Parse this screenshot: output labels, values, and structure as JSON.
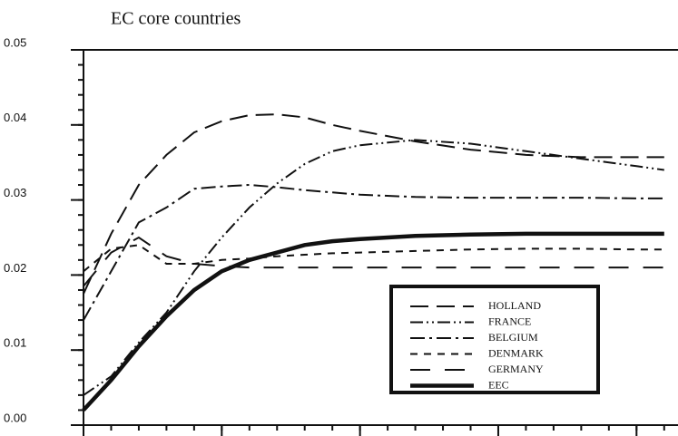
{
  "chart_data": {
    "type": "line",
    "title": "EC core countries",
    "x": [
      0,
      2,
      4,
      6,
      8,
      10,
      12,
      14,
      16,
      18,
      20,
      24,
      28,
      32,
      36,
      40,
      42
    ],
    "xlim": [
      0,
      43
    ],
    "xticks": [
      0,
      10,
      20,
      30,
      40
    ],
    "xminor_step": 2,
    "ylim": [
      0,
      0.05
    ],
    "yticks": [
      {
        "value": 0,
        "label": "0.00"
      },
      0.01,
      0.02,
      0.03,
      0.04,
      0.05
    ],
    "yminor_step": 0.002,
    "series": [
      {
        "name": "HOLLAND",
        "color": "#111",
        "dash": "20,9",
        "width": 2,
        "values": [
          0.0175,
          0.0255,
          0.032,
          0.036,
          0.039,
          0.0405,
          0.0413,
          0.0414,
          0.041,
          0.04,
          0.0392,
          0.0378,
          0.0367,
          0.036,
          0.0357,
          0.0357,
          0.0357
        ]
      },
      {
        "name": "FRANCE",
        "color": "#111",
        "dash": "14,4,2,4,2,4",
        "width": 2,
        "values": [
          0.004,
          0.0065,
          0.011,
          0.015,
          0.0205,
          0.025,
          0.029,
          0.0322,
          0.0348,
          0.0365,
          0.0373,
          0.038,
          0.0375,
          0.0365,
          0.0355,
          0.0345,
          0.034
        ]
      },
      {
        "name": "BELGIUM",
        "color": "#111",
        "dash": "16,5,3,5",
        "width": 2,
        "values": [
          0.014,
          0.0205,
          0.027,
          0.029,
          0.0315,
          0.0318,
          0.032,
          0.0317,
          0.0313,
          0.031,
          0.0307,
          0.0304,
          0.0303,
          0.0303,
          0.0303,
          0.0302,
          0.0302
        ]
      },
      {
        "name": "DENMARK",
        "color": "#111",
        "dash": "8,7",
        "width": 2,
        "values": [
          0.0205,
          0.0235,
          0.024,
          0.0215,
          0.0215,
          0.022,
          0.0222,
          0.0225,
          0.0227,
          0.0229,
          0.023,
          0.0232,
          0.0234,
          0.0235,
          0.0235,
          0.0234,
          0.0234
        ]
      },
      {
        "name": "GERMANY",
        "color": "#111",
        "dash": "22,16",
        "width": 2,
        "values": [
          0.0185,
          0.023,
          0.025,
          0.0225,
          0.0215,
          0.0212,
          0.021,
          0.021,
          0.021,
          0.021,
          0.021,
          0.021,
          0.021,
          0.021,
          0.021,
          0.021,
          0.021
        ]
      },
      {
        "name": "EEC",
        "color": "#111",
        "dash": "",
        "width": 4.5,
        "values": [
          0.002,
          0.006,
          0.0105,
          0.0145,
          0.018,
          0.0205,
          0.022,
          0.023,
          0.024,
          0.0245,
          0.0248,
          0.0252,
          0.0254,
          0.0255,
          0.0255,
          0.0255,
          0.0255
        ]
      }
    ]
  }
}
